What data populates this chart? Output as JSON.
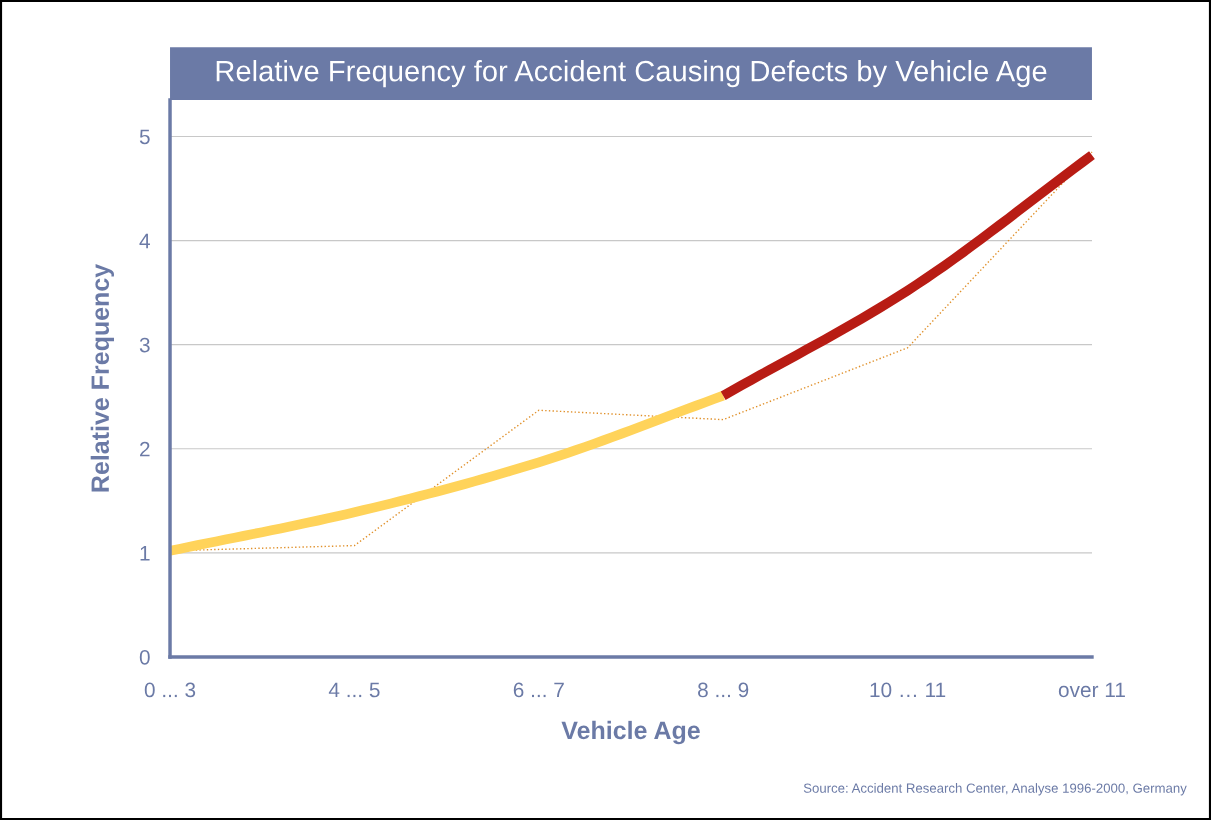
{
  "chart_data": {
    "type": "line",
    "title": "Relative Frequency for Accident Causing Defects by Vehicle Age",
    "xlabel": "Vehicle Age",
    "ylabel": "Relative Frequency",
    "categories": [
      "0 ... 3",
      "4 ... 5",
      "6 ... 7",
      "8 ... 9",
      "10 … 11",
      "over 11"
    ],
    "ylim": [
      0,
      5.35
    ],
    "yticks": [
      0,
      1,
      2,
      3,
      4,
      5
    ],
    "grid": "y",
    "marker": "none",
    "series": [
      {
        "color": "#e0902a",
        "line_style": "dotted",
        "values": [
          1.02,
          1.07,
          2.37,
          2.28,
          2.97,
          4.85
        ]
      },
      {
        "color": "#ffd35a",
        "line_style": "solid",
        "values": [
          1.02,
          1.39,
          1.87,
          2.51,
          null,
          null
        ]
      },
      {
        "color": "#b81c14",
        "line_style": "solid",
        "values": [
          null,
          null,
          null,
          2.51,
          3.52,
          4.82
        ]
      }
    ],
    "annotations": [
      "Source: Accident Research Center, Analyse 1996-2000, Germany"
    ]
  }
}
